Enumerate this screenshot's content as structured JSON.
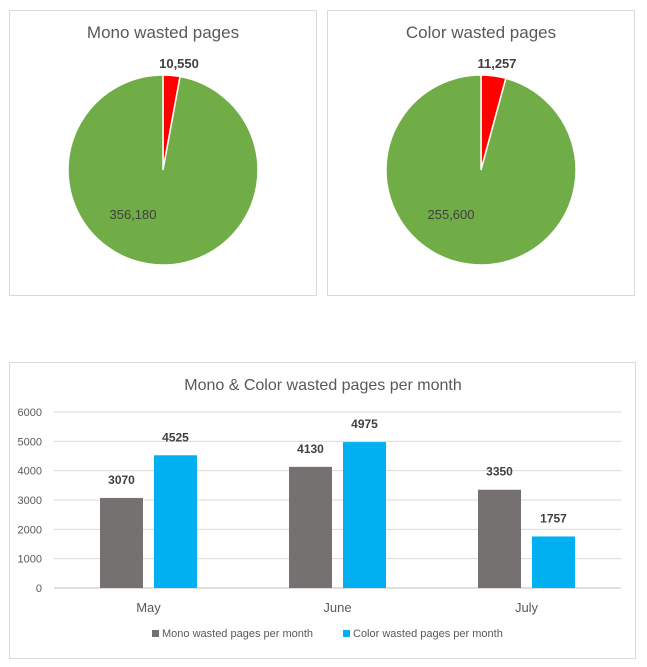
{
  "chart_data": [
    {
      "type": "pie",
      "title": "Mono wasted pages",
      "slices": [
        {
          "label": "10,550",
          "value": 10550,
          "color": "#ff0000"
        },
        {
          "label": "356,180",
          "value": 356180,
          "color": "#70ad47"
        }
      ]
    },
    {
      "type": "pie",
      "title": "Color wasted pages",
      "slices": [
        {
          "label": "11,257",
          "value": 11257,
          "color": "#ff0000"
        },
        {
          "label": "255,600",
          "value": 255600,
          "color": "#70ad47"
        }
      ]
    },
    {
      "type": "bar",
      "title": "Mono & Color wasted pages per month",
      "categories": [
        "May",
        "June",
        "July"
      ],
      "series": [
        {
          "name": "Mono wasted pages per month",
          "values": [
            3070,
            4130,
            3350
          ],
          "color": "#767171"
        },
        {
          "name": "Color wasted pages per month",
          "values": [
            4525,
            4975,
            1757
          ],
          "color": "#00b0f0"
        }
      ],
      "ylim": [
        0,
        6000
      ],
      "yticks": [
        "0",
        "1000",
        "2000",
        "3000",
        "4000",
        "5000",
        "6000"
      ],
      "grid": true,
      "legend": "bottom"
    }
  ]
}
